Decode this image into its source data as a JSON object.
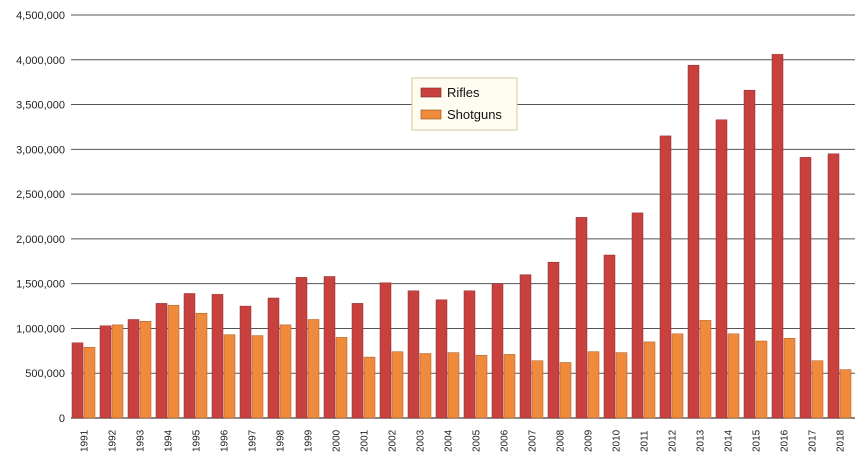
{
  "chart_data": {
    "type": "bar",
    "categories": [
      "1991",
      "1992",
      "1993",
      "1994",
      "1995",
      "1996",
      "1997",
      "1998",
      "1999",
      "2000",
      "2001",
      "2002",
      "2003",
      "2004",
      "2005",
      "2006",
      "2007",
      "2008",
      "2009",
      "2010",
      "2011",
      "2012",
      "2013",
      "2014",
      "2015",
      "2016",
      "2017",
      "2018"
    ],
    "series": [
      {
        "name": "Rifles",
        "color": "#c8413f",
        "values": [
          840000,
          1030000,
          1100000,
          1280000,
          1390000,
          1380000,
          1250000,
          1340000,
          1570000,
          1580000,
          1280000,
          1510000,
          1420000,
          1320000,
          1420000,
          1500000,
          1600000,
          1740000,
          2240000,
          1820000,
          2290000,
          3150000,
          3940000,
          3330000,
          3660000,
          4060000,
          2910000,
          2950000
        ]
      },
      {
        "name": "Shotguns",
        "color": "#f08a3c",
        "values": [
          790000,
          1040000,
          1080000,
          1260000,
          1170000,
          930000,
          920000,
          1040000,
          1100000,
          900000,
          680000,
          740000,
          720000,
          730000,
          700000,
          710000,
          640000,
          620000,
          740000,
          730000,
          850000,
          940000,
          1090000,
          940000,
          860000,
          890000,
          640000,
          540000
        ]
      }
    ],
    "ylim": [
      0,
      4500000
    ],
    "yticks": [
      "0",
      "500,000",
      "1,000,000",
      "1,500,000",
      "2,000,000",
      "2,500,000",
      "3,000,000",
      "3,500,000",
      "4,000,000",
      "4,500,000"
    ],
    "ytick_values": [
      0,
      500000,
      1000000,
      1500000,
      2000000,
      2500000,
      3000000,
      3500000,
      4000000,
      4500000
    ],
    "grid": true,
    "legend_position": "top-center"
  }
}
